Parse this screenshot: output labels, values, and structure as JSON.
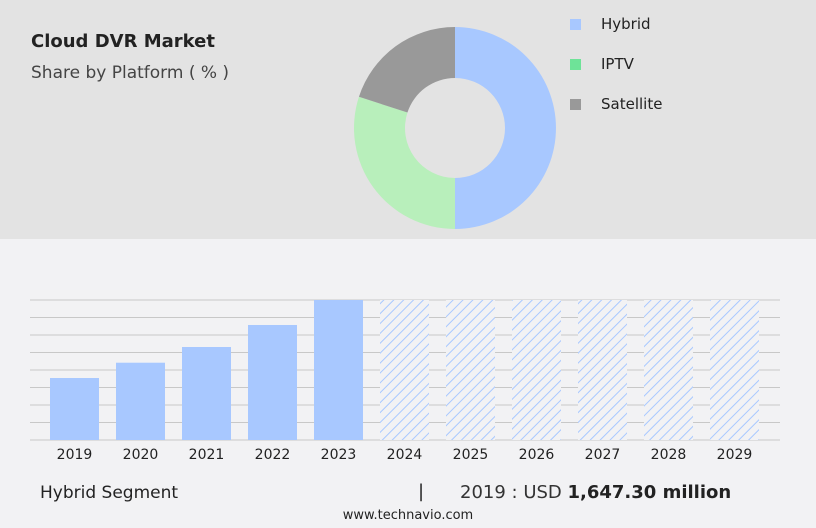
{
  "title": "Cloud DVR Market",
  "subtitle": "Share by Platform ( % )",
  "chart_data": [
    {
      "type": "pie",
      "variant": "donut",
      "title": "Cloud DVR Market",
      "subtitle": "Share by Platform ( % )",
      "categories": [
        "Hybrid",
        "IPTV",
        "Satellite"
      ],
      "values": [
        50,
        30,
        20
      ],
      "colors": [
        "#a8c8ff",
        "#b8efbb",
        "#999999"
      ],
      "legend_colors": [
        "#a8c8ff",
        "#6ee398",
        "#999999"
      ],
      "legend": "right"
    },
    {
      "type": "bar",
      "categories": [
        "2019",
        "2020",
        "2021",
        "2022",
        "2023",
        "2024",
        "2025",
        "2026",
        "2027",
        "2028",
        "2029"
      ],
      "values": [
        1647.3,
        2054,
        2471,
        3056,
        3720,
        null,
        null,
        null,
        null,
        null,
        null
      ],
      "forecast_years": [
        "2024",
        "2025",
        "2026",
        "2027",
        "2028",
        "2029"
      ],
      "unit": "USD million",
      "grid": true,
      "bar_color": "#a8c8ff"
    }
  ],
  "footer": {
    "segment": "Hybrid Segment",
    "separator": "|",
    "value_prefix": "2019 : USD ",
    "value": "1,647.30 million"
  },
  "site": "www.technavio.com"
}
